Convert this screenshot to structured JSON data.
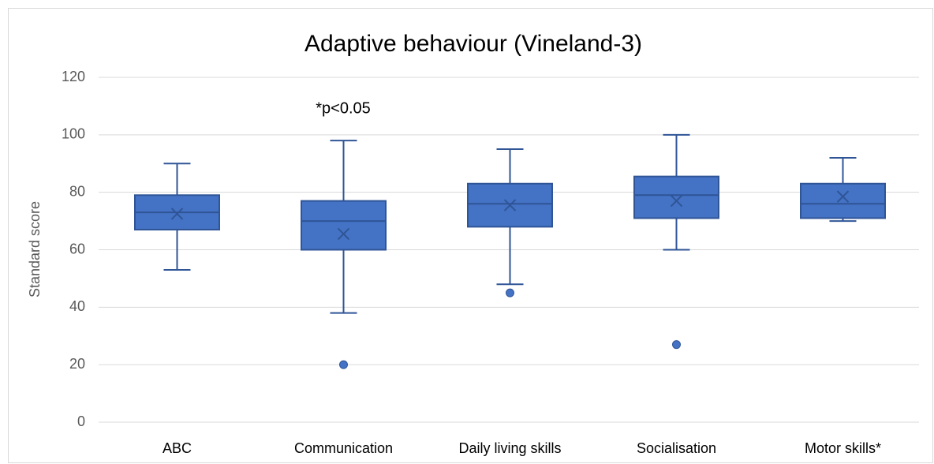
{
  "chart_data": {
    "type": "box",
    "title": "Adaptive behaviour (Vineland-3)",
    "y_label": "Standard score",
    "annotation": "*p<0.05",
    "categories": [
      "ABC",
      "Communication",
      "Daily living skills",
      "Socialisation",
      "Motor skills*"
    ],
    "min": [
      53,
      38,
      48,
      60,
      70
    ],
    "q1": [
      67,
      60,
      68,
      71,
      71
    ],
    "median": [
      73,
      70,
      76,
      79,
      76
    ],
    "q3": [
      79,
      77,
      83,
      85.5,
      83
    ],
    "max": [
      90,
      98,
      95,
      100,
      92
    ],
    "mean": [
      72.5,
      65.5,
      75.5,
      77,
      78.5
    ],
    "outliers": [
      [],
      [
        20
      ],
      [
        45
      ],
      [
        27
      ],
      []
    ],
    "color": "#4472c4",
    "ylim": [
      0,
      120
    ],
    "yticks": [
      0,
      20,
      40,
      60,
      80,
      100,
      120
    ],
    "grid": true
  }
}
